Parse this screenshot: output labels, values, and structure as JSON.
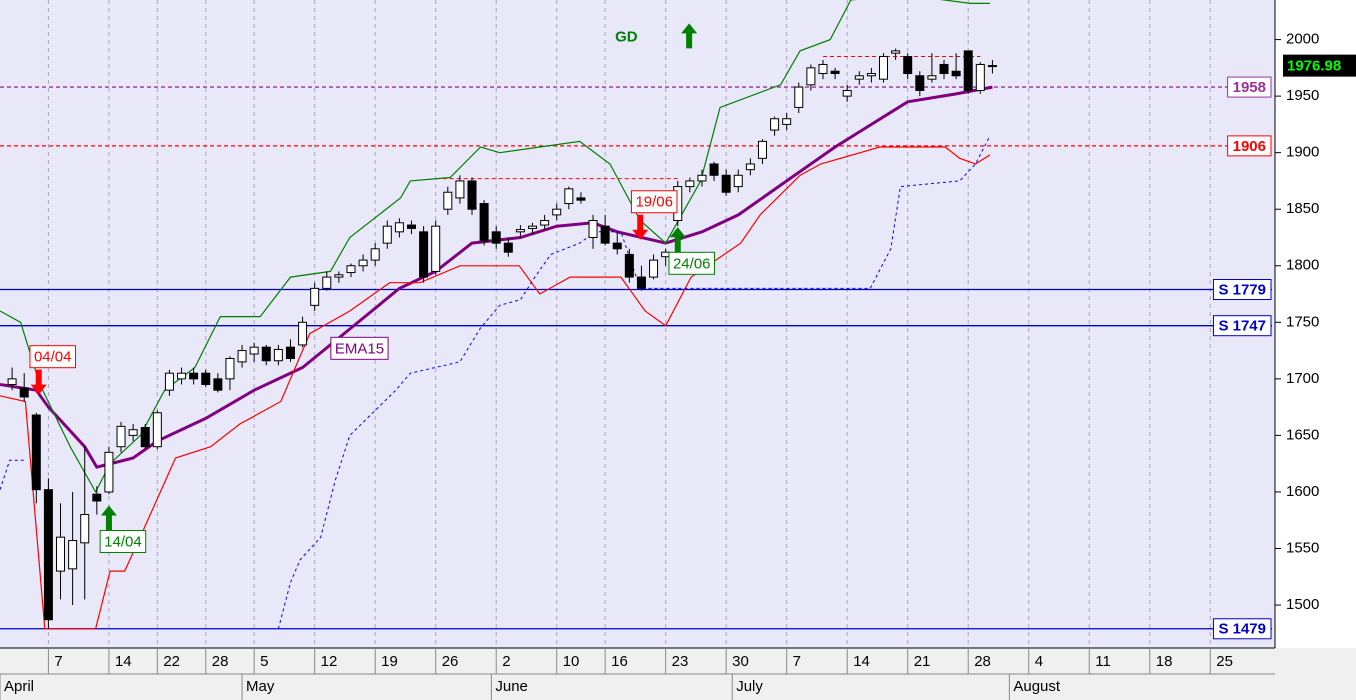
{
  "chart_data": {
    "type": "candlestick",
    "xlim": [
      -4,
      101.1
    ],
    "ylim": [
      1462,
      2035
    ],
    "yticks": [
      1500,
      1550,
      1600,
      1650,
      1700,
      1750,
      1800,
      1850,
      1900,
      1950,
      2000
    ],
    "xticks": [
      {
        "value": 0,
        "label": "7"
      },
      {
        "value": 5,
        "label": "14"
      },
      {
        "value": 9,
        "label": "22"
      },
      {
        "value": 13,
        "label": "28"
      },
      {
        "value": 17,
        "label": "5"
      },
      {
        "value": 22,
        "label": "12"
      },
      {
        "value": 27,
        "label": "19"
      },
      {
        "value": 32,
        "label": "26"
      },
      {
        "value": 37,
        "label": "2"
      },
      {
        "value": 42,
        "label": "10"
      },
      {
        "value": 46,
        "label": "16"
      },
      {
        "value": 51,
        "label": "23"
      },
      {
        "value": 56,
        "label": "30"
      },
      {
        "value": 61,
        "label": "7"
      },
      {
        "value": 66,
        "label": "14"
      },
      {
        "value": 71,
        "label": "21"
      },
      {
        "value": 76,
        "label": "28"
      },
      {
        "value": 81,
        "label": "4"
      },
      {
        "value": 86,
        "label": "11"
      },
      {
        "value": 91,
        "label": "18"
      },
      {
        "value": 96,
        "label": "25"
      }
    ],
    "months": [
      {
        "value": -4,
        "label": "April"
      },
      {
        "value": 16,
        "label": "May"
      },
      {
        "value": 36.6,
        "label": "June"
      },
      {
        "value": 56.5,
        "label": "July"
      },
      {
        "value": 79.4,
        "label": "August"
      }
    ],
    "grid": true,
    "up_color": "#ffffff",
    "down_color": "#000000",
    "x": [
      -3,
      -2,
      -1,
      0,
      1,
      2,
      3,
      4,
      5,
      6,
      7,
      8,
      9,
      10,
      11,
      12,
      13,
      14,
      15,
      16,
      17,
      18,
      19,
      20,
      21,
      22,
      23,
      24,
      25,
      26,
      27,
      28,
      29,
      30,
      31,
      32,
      33,
      34,
      35,
      36,
      37,
      38,
      39,
      40,
      41,
      42,
      43,
      44,
      45,
      46,
      47,
      48,
      49,
      50,
      51,
      52,
      53,
      54,
      55,
      56,
      57,
      58,
      59,
      60,
      61,
      62,
      63,
      64,
      65,
      66,
      67,
      68,
      69,
      70,
      71,
      72,
      73,
      74,
      75,
      76,
      77,
      78
    ],
    "open": [
      1695,
      1692,
      1668,
      1602,
      1530,
      1532,
      1555,
      1598,
      1600,
      1640,
      1650,
      1657,
      1640,
      1690,
      1700,
      1705,
      1705,
      1700,
      1700,
      1715,
      1722,
      1728,
      1716,
      1728,
      1730,
      1765,
      1780,
      1790,
      1794,
      1800,
      1805,
      1820,
      1830,
      1836,
      1830,
      1795,
      1850,
      1860,
      1875,
      1855,
      1830,
      1820,
      1830,
      1833,
      1836,
      1845,
      1855,
      1860,
      1825,
      1835,
      1820,
      1810,
      1790,
      1790,
      1808,
      1840,
      1870,
      1875,
      1890,
      1880,
      1870,
      1885,
      1895,
      1920,
      1925,
      1940,
      1960,
      1970,
      1972,
      1950,
      1965,
      1968,
      1965,
      1988,
      1985,
      1968,
      1965,
      1978,
      1972,
      1990,
      1955,
      1977
    ],
    "high": [
      1710,
      1705,
      1670,
      1612,
      1590,
      1600,
      1640,
      1605,
      1640,
      1662,
      1660,
      1660,
      1672,
      1708,
      1710,
      1710,
      1708,
      1705,
      1720,
      1730,
      1732,
      1730,
      1730,
      1735,
      1755,
      1785,
      1795,
      1795,
      1802,
      1810,
      1820,
      1840,
      1842,
      1840,
      1835,
      1840,
      1870,
      1880,
      1878,
      1858,
      1835,
      1825,
      1836,
      1838,
      1845,
      1855,
      1870,
      1865,
      1845,
      1845,
      1830,
      1815,
      1800,
      1810,
      1815,
      1875,
      1878,
      1885,
      1892,
      1885,
      1885,
      1895,
      1912,
      1932,
      1935,
      1962,
      1978,
      1982,
      1975,
      1960,
      1972,
      1975,
      1988,
      1992,
      1988,
      1972,
      1988,
      1982,
      1988,
      1990,
      1980,
      1982
    ],
    "low": [
      1690,
      1680,
      1590,
      1479,
      1505,
      1500,
      1505,
      1580,
      1598,
      1635,
      1645,
      1638,
      1638,
      1685,
      1695,
      1695,
      1693,
      1688,
      1690,
      1710,
      1715,
      1712,
      1712,
      1715,
      1728,
      1760,
      1778,
      1785,
      1790,
      1795,
      1800,
      1815,
      1825,
      1828,
      1785,
      1792,
      1845,
      1855,
      1845,
      1818,
      1815,
      1808,
      1825,
      1828,
      1832,
      1840,
      1850,
      1855,
      1815,
      1818,
      1810,
      1785,
      1778,
      1788,
      1800,
      1835,
      1865,
      1870,
      1875,
      1862,
      1865,
      1880,
      1890,
      1915,
      1920,
      1935,
      1955,
      1965,
      1965,
      1945,
      1960,
      1962,
      1962,
      1982,
      1965,
      1950,
      1962,
      1965,
      1965,
      1952,
      1952,
      1970
    ],
    "close": [
      1700,
      1684,
      1602,
      1487,
      1560,
      1557,
      1580,
      1592,
      1635,
      1658,
      1655,
      1640,
      1670,
      1705,
      1705,
      1700,
      1695,
      1690,
      1718,
      1725,
      1728,
      1716,
      1726,
      1718,
      1750,
      1780,
      1790,
      1792,
      1800,
      1805,
      1815,
      1835,
      1838,
      1833,
      1790,
      1835,
      1865,
      1875,
      1850,
      1822,
      1820,
      1812,
      1832,
      1835,
      1840,
      1850,
      1868,
      1858,
      1840,
      1820,
      1815,
      1790,
      1780,
      1805,
      1812,
      1870,
      1875,
      1880,
      1880,
      1865,
      1880,
      1890,
      1910,
      1930,
      1930,
      1958,
      1975,
      1978,
      1970,
      1955,
      1968,
      1970,
      1985,
      1990,
      1970,
      1955,
      1968,
      1970,
      1968,
      1955,
      1978,
      1976.98
    ],
    "last": 1976.98,
    "lines": [
      {
        "color": "#800080",
        "width": 3,
        "dash": "none",
        "x": [
          -4,
          -1,
          0,
          3,
          4,
          7,
          9,
          13,
          17,
          21,
          25,
          29,
          32,
          35,
          39,
          42,
          45,
          47,
          51,
          54,
          57,
          61,
          65,
          68,
          71,
          75,
          78
        ],
        "values": [
          1695,
          1690,
          1675,
          1640,
          1622,
          1630,
          1645,
          1665,
          1690,
          1710,
          1745,
          1780,
          1795,
          1820,
          1825,
          1835,
          1838,
          1830,
          1820,
          1830,
          1845,
          1875,
          1905,
          1925,
          1945,
          1952,
          1958
        ]
      },
      {
        "color": "#008000",
        "width": 1.2,
        "dash": "none",
        "x": [
          -4,
          -2.3,
          -0.7,
          1.8,
          3.9,
          5.1,
          7.6,
          9.6,
          12.1,
          14.2,
          17.5,
          20,
          23.3,
          24.9,
          29.1,
          29.9,
          33.2,
          35.7,
          37.3,
          43.9,
          46.4,
          48.9,
          51,
          53.9,
          55.5,
          60.5,
          62.1,
          64.6,
          66.3,
          70.4,
          76.2,
          77.8
        ],
        "values": [
          1760,
          1750,
          1695,
          1640,
          1600,
          1625,
          1650,
          1690,
          1710,
          1755,
          1755,
          1790,
          1795,
          1825,
          1860,
          1875,
          1878,
          1905,
          1900,
          1910,
          1890,
          1840,
          1820,
          1875,
          1940,
          1960,
          1990,
          2000,
          2035,
          2040,
          2032,
          2032
        ]
      },
      {
        "color": "#ff0000",
        "width": 1.2,
        "dash": "none",
        "x": [
          -4,
          -1.9,
          -0.3,
          3.9,
          5.1,
          6.3,
          8,
          10.5,
          13.4,
          15.8,
          19.2,
          21.6,
          24.9,
          28.2,
          30.7,
          34,
          38.9,
          40.6,
          43.1,
          47.3,
          49.3,
          51,
          53.1,
          57.2,
          58.8,
          62.1,
          63.8,
          68.7,
          74.1,
          75.3,
          76.6,
          77.8
        ],
        "values": [
          1685,
          1680,
          1479,
          1479,
          1530,
          1530,
          1570,
          1630,
          1640,
          1660,
          1680,
          1740,
          1760,
          1785,
          1785,
          1800,
          1800,
          1775,
          1790,
          1790,
          1760,
          1747,
          1790,
          1820,
          1845,
          1880,
          1890,
          1905,
          1905,
          1895,
          1890,
          1898
        ]
      },
      {
        "color": "#0000ff",
        "width": 1,
        "dash": "3 3",
        "x": [
          -4,
          -3.2,
          -2,
          null,
          19,
          20,
          20.8,
          22.5,
          23.7,
          24.9,
          28.7,
          29.9,
          34,
          35.7,
          37.3,
          39,
          40.2,
          41.5,
          43.9,
          45.2,
          47.3,
          48.9,
          67.9,
          69.6,
          70.4,
          75.3,
          76.6,
          77.8
        ],
        "values": [
          1602,
          1628,
          1628,
          null,
          1479,
          1520,
          1540,
          1560,
          1610,
          1650,
          1690,
          1705,
          1715,
          1745,
          1765,
          1770,
          1790,
          1810,
          1820,
          1830,
          1830,
          1780,
          1780,
          1815,
          1870,
          1875,
          1890,
          1915
        ]
      }
    ],
    "levels": [
      {
        "value": 1958,
        "label": "1958",
        "color": "#993399",
        "dash": "4 3"
      },
      {
        "value": 1906,
        "label": "1906",
        "color": "#ff0000",
        "dash": "4 3"
      },
      {
        "value": 1779,
        "label": "S 1779",
        "color": "#0000cc",
        "dash": "none"
      },
      {
        "value": 1747,
        "label": "S 1747",
        "color": "#0000cc",
        "dash": "none"
      },
      {
        "value": 1479,
        "label": "S 1479",
        "color": "#0000cc",
        "dash": "none"
      }
    ],
    "segments": [
      {
        "y": 1877,
        "x": [
          32,
          52
        ],
        "color": "#ff0000"
      },
      {
        "y": 1985,
        "x": [
          64,
          77
        ],
        "color": "#ff0000"
      }
    ],
    "annotations": [
      {
        "text": "04/04",
        "x": -0.8,
        "y": 1686,
        "color": "#ff0000",
        "arrow": "down"
      },
      {
        "text": "14/04",
        "x": 5,
        "y": 1588,
        "color": "#008000",
        "arrow": "up"
      },
      {
        "text": "19/06",
        "x": 48.9,
        "y": 1823,
        "color": "#ff0000",
        "arrow": "down"
      },
      {
        "text": "24/06",
        "x": 52,
        "y": 1834,
        "color": "#008000",
        "arrow": "up"
      },
      {
        "text": "EMA15",
        "x": 25.7,
        "y": 1727,
        "color": "#800080",
        "arrow": "none"
      },
      {
        "text": "GD",
        "x": 49.8,
        "y": 2002,
        "color": "#008000",
        "arrow": "signal"
      }
    ]
  }
}
